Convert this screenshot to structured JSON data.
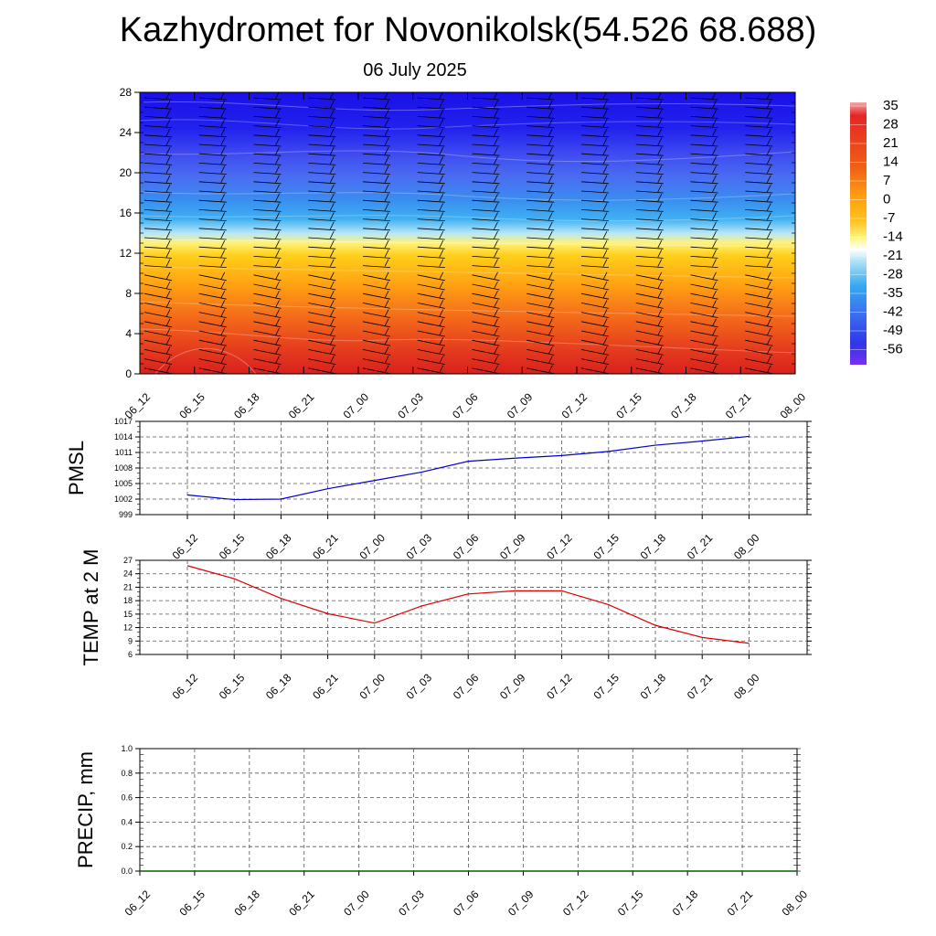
{
  "header": {
    "title": "Kazhydromet for Novonikolsk(54.526 68.688)",
    "subtitle": "06 July 2025"
  },
  "colors": {
    "pmsl_line": "#0000cc",
    "temp_line": "#dd0000",
    "precip_line": "#006400",
    "grid": "#555555"
  },
  "chart_data": [
    {
      "type": "heatmap",
      "id": "cross-section",
      "title": "",
      "xlabel": "",
      "ylabel": "",
      "x_ticks": [
        "06_12",
        "06_15",
        "06_18",
        "06_21",
        "07_00",
        "07_03",
        "07_06",
        "07_09",
        "07_12",
        "07_15",
        "07_18",
        "07_21",
        "08_00"
      ],
      "y_ticks": [
        0,
        4,
        8,
        12,
        16,
        20,
        24,
        28
      ],
      "ylim": [
        0,
        28
      ],
      "description_of_field": "temperature colour field with wind barbs",
      "colorbar": {
        "labels": [
          "35",
          "28",
          "21",
          "14",
          "7",
          "0",
          "-7",
          "-14",
          "-21",
          "-28",
          "-35",
          "-42",
          "-49",
          "-56"
        ],
        "range": [
          -60,
          38
        ]
      }
    },
    {
      "type": "line",
      "id": "pmsl",
      "ylabel": "PMSL",
      "categories": [
        "06_12",
        "06_15",
        "06_18",
        "06_21",
        "07_00",
        "07_03",
        "07_06",
        "07_09",
        "07_12",
        "07_15",
        "07_18",
        "07_21",
        "08_00"
      ],
      "series": [
        {
          "values": [
            1002.8,
            1001.9,
            1002.0,
            1004.0,
            1005.6,
            1007.2,
            1009.3,
            1009.9,
            1010.4,
            1011.2,
            1012.4,
            1013.2,
            1014.1
          ]
        }
      ],
      "ylim": [
        999,
        1017
      ],
      "yticks": [
        "1017",
        "1014",
        "1011",
        "1008",
        "1005",
        "1002",
        "999"
      ]
    },
    {
      "type": "line",
      "id": "temp",
      "ylabel": "TEMP at 2 M",
      "categories": [
        "06_12",
        "06_15",
        "06_18",
        "06_21",
        "07_00",
        "07_03",
        "07_06",
        "07_09",
        "07_12",
        "07_15",
        "07_18",
        "07_21",
        "08_00"
      ],
      "series": [
        {
          "values": [
            25.8,
            22.9,
            18.5,
            15.1,
            13.0,
            16.8,
            19.5,
            20.2,
            20.2,
            17.1,
            12.5,
            9.8,
            8.5
          ]
        }
      ],
      "ylim": [
        6,
        27
      ],
      "yticks": [
        "27",
        "24",
        "21",
        "18",
        "15",
        "12",
        "9",
        "6"
      ]
    },
    {
      "type": "line",
      "id": "precip",
      "ylabel": "PRECIP, mm",
      "categories": [
        "06_12",
        "06_15",
        "06_18",
        "06_21",
        "07_00",
        "07_03",
        "07_06",
        "07_09",
        "07_12",
        "07_15",
        "07_18",
        "07_21",
        "08_00"
      ],
      "series": [
        {
          "values": [
            0,
            0,
            0,
            0,
            0,
            0,
            0,
            0,
            0,
            0,
            0,
            0,
            0
          ]
        }
      ],
      "ylim": [
        0,
        1
      ],
      "yticks": [
        "1.0",
        "0.8",
        "0.6",
        "0.4",
        "0.2",
        "0.0"
      ]
    }
  ]
}
